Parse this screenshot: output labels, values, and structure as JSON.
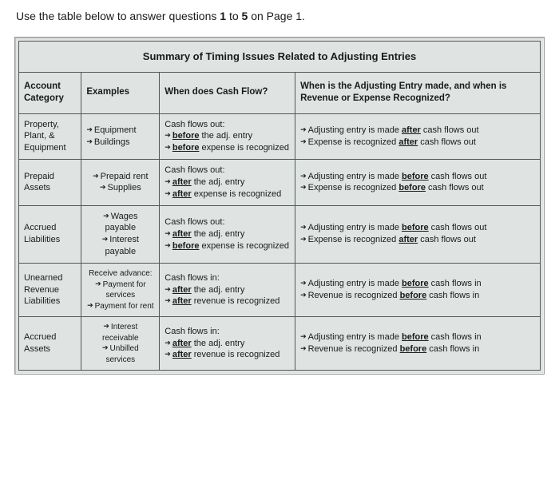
{
  "instruction_pre": "Use the table below to answer questions ",
  "instruction_b1": "1",
  "instruction_mid": " to ",
  "instruction_b2": "5",
  "instruction_post": " on Page 1.",
  "title": "Summary of Timing Issues Related to Adjusting Entries",
  "headers": {
    "cat": "Account Category",
    "ex": "Examples",
    "cf": "When does Cash Flow?",
    "adj": "When is the Adjusting Entry made, and when is Revenue or Expense Recognized?"
  },
  "rows": {
    "r1": {
      "cat1": "Property,",
      "cat2": "Plant, &",
      "cat3": "Equipment",
      "ex1": "Equipment",
      "ex2": "Buildings",
      "cf_hdr": "Cash flows out:",
      "cf_l1a": "before",
      "cf_l1b": " the adj. entry",
      "cf_l2a": "before",
      "cf_l2b": " expense is recognized",
      "adj_l1a": "Adjusting entry is made ",
      "adj_l1u": "after",
      "adj_l1b": " cash flows out",
      "adj_l2a": "Expense is recognized ",
      "adj_l2u": "after",
      "adj_l2b": " cash flows out"
    },
    "r2": {
      "cat1": "Prepaid",
      "cat2": "Assets",
      "ex1": "Prepaid rent",
      "ex2": "Supplies",
      "cf_hdr": "Cash flows out:",
      "cf_l1a": "after",
      "cf_l1b": " the adj. entry",
      "cf_l2a": "after",
      "cf_l2b": " expense is recognized",
      "adj_l1a": "Adjusting entry is made ",
      "adj_l1u": "before",
      "adj_l1b": " cash flows out",
      "adj_l2a": "Expense is recognized ",
      "adj_l2u": "before",
      "adj_l2b": " cash flows out"
    },
    "r3": {
      "cat1": "Accrued",
      "cat2": "Liabilities",
      "ex1": "Wages payable",
      "ex2": "Interest payable",
      "cf_hdr": "Cash flows out:",
      "cf_l1a": "after",
      "cf_l1b": " the adj. entry",
      "cf_l2a": "before",
      "cf_l2b": " expense is recognized",
      "adj_l1a": "Adjusting entry is made ",
      "adj_l1u": "before",
      "adj_l1b": " cash flows out",
      "adj_l2a": "Expense is recognized ",
      "adj_l2u": "after",
      "adj_l2b": " cash flows out"
    },
    "r4": {
      "cat1": "Unearned",
      "cat2": "Revenue",
      "cat3": "Liabilities",
      "ex_hdr": "Receive advance:",
      "ex1": "Payment for services",
      "ex2": "Payment for rent",
      "cf_hdr": "Cash flows in:",
      "cf_l1a": "after",
      "cf_l1b": " the adj. entry",
      "cf_l2a": "after",
      "cf_l2b": " revenue is recognized",
      "adj_l1a": "Adjusting entry is made ",
      "adj_l1u": "before",
      "adj_l1b": " cash flows in",
      "adj_l2a": "Revenue is recognized ",
      "adj_l2u": "before",
      "adj_l2b": " cash flows in"
    },
    "r5": {
      "cat1": "Accrued",
      "cat2": "Assets",
      "ex1": "Interest receivable",
      "ex2": "Unbilled services",
      "cf_hdr": "Cash flows in:",
      "cf_l1a": "after",
      "cf_l1b": " the adj. entry",
      "cf_l2a": "after",
      "cf_l2b": " revenue is recognized",
      "adj_l1a": "Adjusting entry is made ",
      "adj_l1u": "before",
      "adj_l1b": " cash flows in",
      "adj_l2a": "Revenue is recognized ",
      "adj_l2u": "before",
      "adj_l2b": " cash flows in"
    }
  }
}
